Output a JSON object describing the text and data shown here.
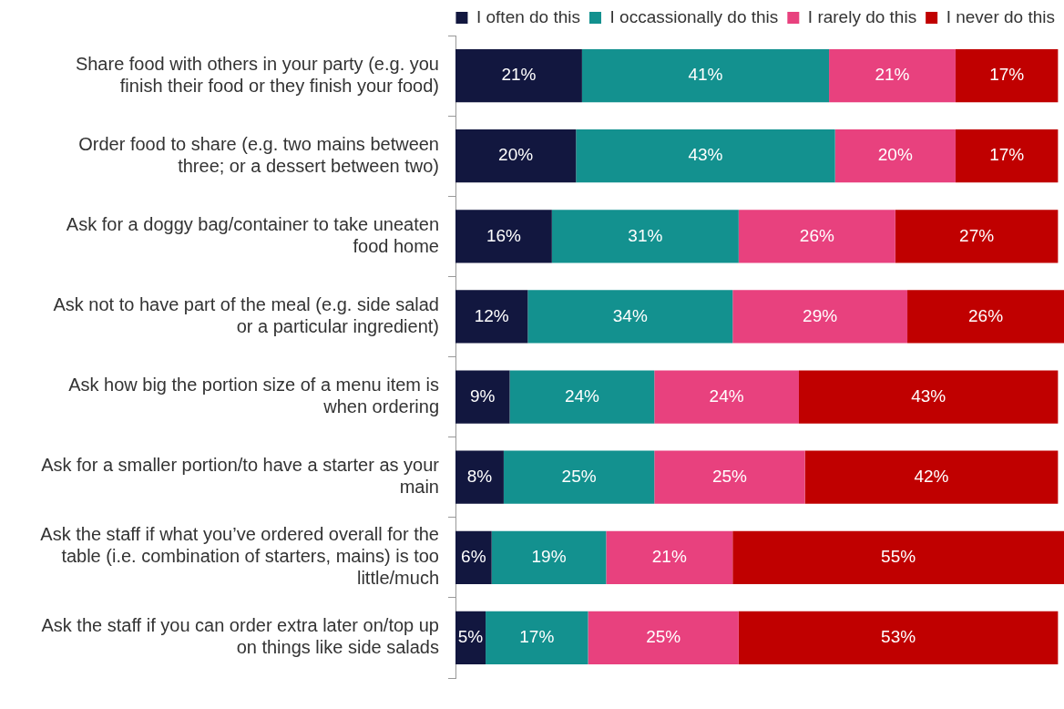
{
  "chart_data": {
    "type": "bar",
    "orientation": "horizontal",
    "stacked": true,
    "legend": "top right",
    "categories": [
      "Share food with others in your party (e.g. you finish their food or they finish your food)",
      "Order food to share (e.g. two mains between three; or a dessert between two)",
      "Ask for a doggy bag/container to take uneaten food home",
      "Ask not to have part of the meal (e.g. side salad or a particular ingredient)",
      "Ask how big the portion size of a menu item is when ordering",
      "Ask for a smaller portion/to have a starter as your main",
      "Ask the staff if what you’ve ordered overall for the table (i.e. combination of starters, mains) is too little/much",
      "Ask the staff if you can order extra later on/top up on things like side salads"
    ],
    "series": [
      {
        "name": "I often do this",
        "color": "#12173f",
        "values": [
          21,
          20,
          16,
          12,
          9,
          8,
          6,
          5
        ],
        "value_labels": [
          "21%",
          "20%",
          "16%",
          "12%",
          "9%",
          "8%",
          "6%",
          "5%"
        ]
      },
      {
        "name": "I occassionally do this",
        "color": "#13918f",
        "values": [
          41,
          43,
          31,
          34,
          24,
          25,
          19,
          17
        ],
        "value_labels": [
          "41%",
          "43%",
          "31%",
          "34%",
          "24%",
          "25%",
          "19%",
          "17%"
        ]
      },
      {
        "name": "I rarely do this",
        "color": "#e8417e",
        "values": [
          21,
          20,
          26,
          29,
          24,
          25,
          21,
          25
        ],
        "value_labels": [
          "21%",
          "20%",
          "26%",
          "29%",
          "24%",
          "25%",
          "21%",
          "25%"
        ]
      },
      {
        "name": "I never do this",
        "color": "#c00000",
        "values": [
          17,
          17,
          27,
          26,
          43,
          42,
          55,
          53
        ],
        "value_labels": [
          "17%",
          "17%",
          "27%",
          "26%",
          "43%",
          "42%",
          "55%",
          "53%"
        ]
      }
    ]
  }
}
